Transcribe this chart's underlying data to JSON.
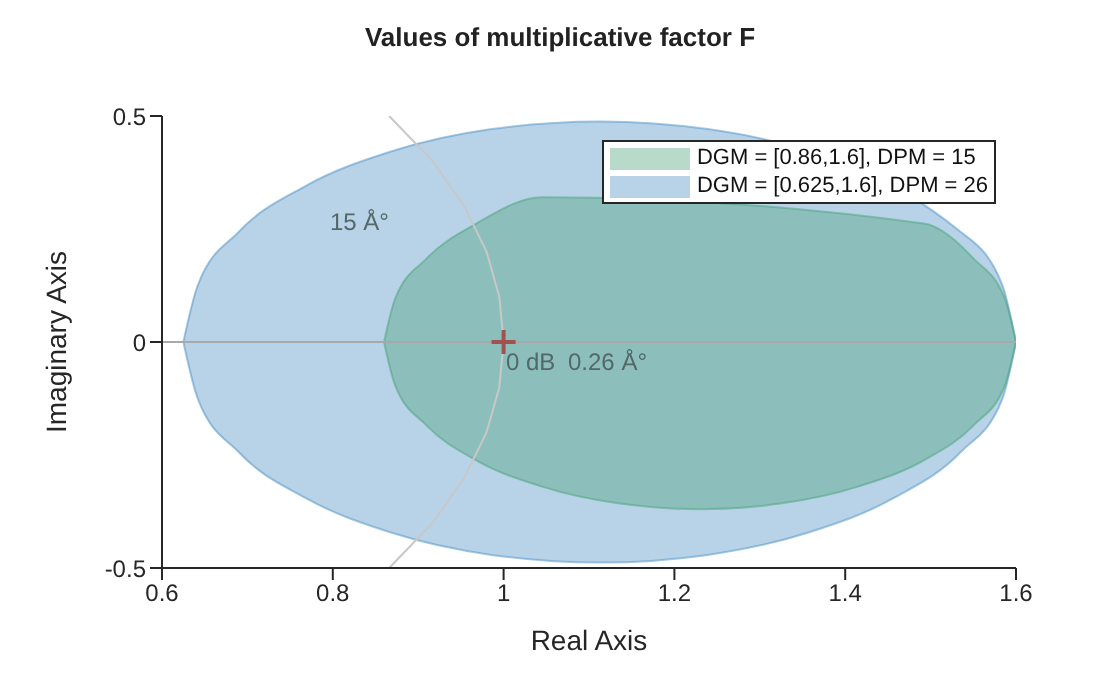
{
  "chart_data": {
    "type": "area",
    "title": "Values of multiplicative factor F",
    "xlabel": "Real Axis",
    "ylabel": "Imaginary Axis",
    "xlim": [
      0.6,
      1.6
    ],
    "xticks": [
      0.6,
      0.8,
      1,
      1.2,
      1.4,
      1.6
    ],
    "ylim": [
      -0.5,
      0.5
    ],
    "yticks": [
      -0.5,
      0,
      0.5
    ],
    "legend": "top right",
    "series": [
      {
        "name": "DGM = [0.86,1.6], DPM = 15",
        "color": "#4aa37a",
        "x": [
          0.86,
          0.873,
          0.91,
          0.968,
          1.045,
          1.134,
          1.23,
          1.326,
          1.415,
          1.492,
          1.55,
          1.587,
          1.6
        ],
        "values": [
          0,
          0.096,
          0.185,
          0.262,
          0.32,
          null,
          null,
          null,
          null,
          0.262,
          0.185,
          0.096,
          0
        ]
      },
      {
        "color": "#4aa37a",
        "x": [
          0.86,
          0.873,
          0.91,
          0.968,
          1.045,
          1.134,
          1.23,
          1.326,
          1.415,
          1.492,
          1.55,
          1.587,
          1.6
        ],
        "values": [
          0,
          -0.096,
          -0.185,
          -0.262,
          -0.32,
          -0.357,
          -0.37,
          -0.357,
          -0.32,
          -0.262,
          -0.185,
          -0.096,
          0
        ]
      },
      {
        "name": "DGM = [0.625,1.6], DPM = 26",
        "color": "#4e91c6",
        "x": [
          0.625,
          0.642,
          0.69,
          0.768,
          0.869,
          0.986,
          1.113,
          1.239,
          1.356,
          1.457,
          1.535,
          1.584,
          1.6
        ],
        "values": [
          0,
          0.126,
          0.244,
          0.345,
          0.422,
          0.471,
          0.488,
          0.471,
          null,
          null,
          0.244,
          0.126,
          0
        ]
      },
      {
        "color": "#4e91c6",
        "x": [
          0.625,
          0.642,
          0.69,
          0.768,
          0.869,
          0.986,
          1.113,
          1.239,
          1.356,
          1.457,
          1.535,
          1.584,
          1.6
        ],
        "values": [
          0,
          -0.126,
          -0.244,
          -0.345,
          -0.422,
          -0.471,
          -0.488,
          -0.471,
          -0.422,
          -0.345,
          -0.244,
          -0.126,
          0
        ]
      },
      {
        "type": "line",
        "color": "#c8c8c8",
        "x": [
          0.866,
          0.917,
          0.954,
          0.98,
          0.995,
          1,
          0.995,
          0.98,
          0.954,
          0.917,
          0.866
        ],
        "values": [
          0.5,
          0.4,
          0.3,
          0.2,
          0.1,
          0,
          -0.1,
          -0.2,
          -0.3,
          -0.4,
          -0.5
        ]
      },
      {
        "type": "scatter",
        "color": "#a0524f",
        "marker": "cross",
        "x": [
          1
        ],
        "values": [
          0
        ]
      }
    ],
    "ref_lines": [
      {
        "axis": "y",
        "value": 0,
        "color": "#a8a8a8"
      }
    ],
    "annotations": [
      "15 Å°",
      "0 dB",
      "0.26 Å°"
    ]
  }
}
